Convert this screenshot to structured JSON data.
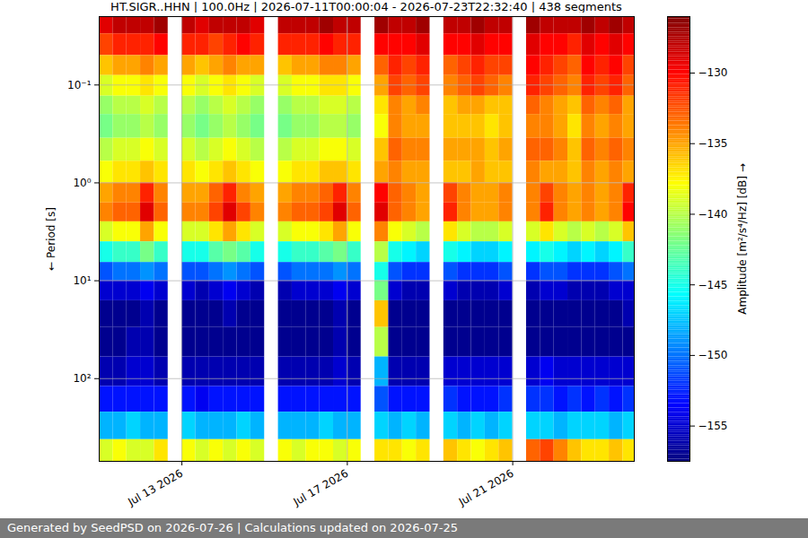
{
  "chart_data": {
    "type": "heatmap",
    "title": "HT.SIGR..HHN | 100.0Hz | 2026-07-11T00:00:04 - 2026-07-23T22:32:40 | 438 segments",
    "footer": "Generated by SeedPSD on 2026-07-26 | Calculations updated on 2026-07-25",
    "ylabel": "Period [s]",
    "log": "y",
    "grid": true,
    "color": "jet",
    "xlim": [
      "2026-07-11T00:00:04",
      "2026-07-23T22:32:40"
    ],
    "xticks": [
      {
        "value": "2026-07-13",
        "label": "Jul 13 2026"
      },
      {
        "value": "2026-07-17",
        "label": "Jul 17 2026"
      },
      {
        "value": "2026-07-21",
        "label": "Jul 21 2026"
      }
    ],
    "ylim": [
      0.02,
      700
    ],
    "yticks": [
      {
        "value": 0.1,
        "label": "10⁻¹"
      },
      {
        "value": 1,
        "label": "10⁰"
      },
      {
        "value": 10,
        "label": "10¹"
      },
      {
        "value": 100,
        "label": "10²"
      }
    ],
    "x_edges": [
      "2026-07-11T00:00:04",
      "2026-07-11T08:00:00",
      "2026-07-11T16:00:00",
      "2026-07-12T00:00:00",
      "2026-07-12T08:00:00",
      "2026-07-12T16:00:00",
      "2026-07-13T00:00:00",
      "2026-07-13T08:00:00",
      "2026-07-13T16:00:00",
      "2026-07-14T00:00:00",
      "2026-07-14T08:00:00",
      "2026-07-14T16:00:00",
      "2026-07-15T00:00:00",
      "2026-07-15T08:00:00",
      "2026-07-15T16:00:00",
      "2026-07-16T00:00:00",
      "2026-07-16T08:00:00",
      "2026-07-16T16:00:00",
      "2026-07-17T00:00:00",
      "2026-07-17T08:00:00",
      "2026-07-17T16:00:00",
      "2026-07-18T00:00:00",
      "2026-07-18T08:00:00",
      "2026-07-18T16:00:00",
      "2026-07-19T00:00:00",
      "2026-07-19T08:00:00",
      "2026-07-19T16:00:00",
      "2026-07-20T00:00:00",
      "2026-07-20T08:00:00",
      "2026-07-20T16:00:00",
      "2026-07-21T00:00:00",
      "2026-07-21T08:00:00",
      "2026-07-21T16:00:00",
      "2026-07-22T00:00:00",
      "2026-07-22T08:00:00",
      "2026-07-22T16:00:00",
      "2026-07-23T00:00:00",
      "2026-07-23T08:00:00",
      "2026-07-23T16:00:00",
      "2026-07-23T22:32:40"
    ],
    "y_edges": [
      0.02,
      0.03,
      0.05,
      0.08,
      0.13,
      0.2,
      0.35,
      0.6,
      1,
      1.6,
      2.5,
      4,
      6.5,
      10,
      16,
      30,
      60,
      120,
      220,
      420,
      700
    ],
    "cells": [
      [
        -129,
        -128,
        -128,
        -128,
        -127,
        null,
        -128,
        -129,
        -128,
        -128,
        -128,
        -129,
        null,
        -128,
        -128,
        -128,
        -127,
        -128,
        -128,
        null,
        -127,
        -128,
        -128,
        -127,
        null,
        -128,
        -128,
        -127,
        -128,
        -128,
        null,
        -127,
        -128,
        -128,
        -128,
        -127,
        -128,
        -127,
        -128
      ],
      [
        -132,
        -131,
        -131,
        -131,
        -130,
        null,
        -131,
        -131,
        -132,
        -131,
        -130,
        -131,
        null,
        -131,
        -131,
        -131,
        -130,
        -131,
        -131,
        null,
        -130,
        -130,
        -130,
        -129,
        null,
        -130,
        -130,
        -129,
        -130,
        -130,
        null,
        -129,
        -130,
        -130,
        -131,
        -129,
        -130,
        -129,
        -130
      ],
      [
        -136,
        -135,
        -135,
        -134,
        -135,
        null,
        -135,
        -136,
        -135,
        -134,
        -135,
        -135,
        null,
        -136,
        -135,
        -135,
        -134,
        -134,
        -135,
        null,
        -133,
        -131,
        -132,
        -131,
        null,
        -133,
        -132,
        -131,
        -132,
        -132,
        null,
        -130,
        -131,
        -132,
        -133,
        -130,
        -131,
        -130,
        -132
      ],
      [
        -139,
        -138,
        -138,
        -137,
        -138,
        null,
        -138,
        -139,
        -138,
        -137,
        -138,
        -139,
        null,
        -139,
        -138,
        -138,
        -137,
        -137,
        -138,
        null,
        -135,
        -132,
        -133,
        -132,
        null,
        -134,
        -133,
        -132,
        -133,
        -134,
        null,
        -131,
        -132,
        -133,
        -134,
        -131,
        -132,
        -131,
        -133
      ],
      [
        -141,
        -140,
        -140,
        -139,
        -140,
        null,
        -140,
        -141,
        -140,
        -139,
        -140,
        -141,
        null,
        -141,
        -140,
        -140,
        -139,
        -139,
        -140,
        null,
        -137,
        -134,
        -135,
        -134,
        null,
        -136,
        -135,
        -135,
        -136,
        -136,
        null,
        -133,
        -134,
        -135,
        -136,
        -133,
        -134,
        -133,
        -135
      ],
      [
        -142,
        -141,
        -141,
        -140,
        -141,
        null,
        -141,
        -142,
        -141,
        -140,
        -141,
        -142,
        null,
        -142,
        -141,
        -141,
        -140,
        -140,
        -141,
        null,
        -138,
        -134,
        -135,
        -135,
        null,
        -136,
        -136,
        -136,
        -137,
        -136,
        null,
        -134,
        -134,
        -135,
        -137,
        -134,
        -135,
        -134,
        -135
      ],
      [
        -140,
        -139,
        -139,
        -138,
        -139,
        null,
        -139,
        -140,
        -139,
        -138,
        -139,
        -140,
        null,
        -140,
        -139,
        -139,
        -138,
        -138,
        -139,
        null,
        -136,
        -133,
        -134,
        -134,
        null,
        -135,
        -135,
        -135,
        -136,
        -135,
        null,
        -133,
        -133,
        -134,
        -136,
        -133,
        -134,
        -133,
        -134
      ],
      [
        -138,
        -137,
        -137,
        -136,
        -137,
        null,
        -137,
        -138,
        -137,
        -136,
        -137,
        -138,
        null,
        -138,
        -137,
        -137,
        -136,
        -136,
        -137,
        null,
        -135,
        -134,
        -135,
        -135,
        null,
        -136,
        -136,
        -135,
        -136,
        -136,
        null,
        -134,
        -135,
        -135,
        -136,
        -134,
        -135,
        -134,
        -135
      ],
      [
        -135,
        -134,
        -134,
        -131,
        -134,
        null,
        -135,
        -135,
        -133,
        -131,
        -134,
        -135,
        null,
        -135,
        -134,
        -134,
        -133,
        -131,
        -134,
        null,
        -130,
        -133,
        -134,
        -135,
        null,
        -132,
        -134,
        -135,
        -135,
        -134,
        null,
        -134,
        -132,
        -134,
        -135,
        -134,
        -135,
        -134,
        -131
      ],
      [
        -134,
        -133,
        -133,
        -129,
        -133,
        null,
        -134,
        -134,
        -132,
        -129,
        -132,
        -134,
        null,
        -134,
        -133,
        -133,
        -132,
        -129,
        -133,
        null,
        -129,
        -133,
        -134,
        -135,
        null,
        -131,
        -134,
        -135,
        -135,
        -134,
        null,
        -134,
        -131,
        -134,
        -135,
        -134,
        -135,
        -134,
        -130
      ],
      [
        -139,
        -138,
        -138,
        -135,
        -138,
        null,
        -139,
        -139,
        -137,
        -135,
        -137,
        -139,
        null,
        -139,
        -138,
        -138,
        -137,
        -135,
        -138,
        null,
        -134,
        -138,
        -139,
        -140,
        null,
        -137,
        -139,
        -140,
        -140,
        -139,
        null,
        -139,
        -137,
        -139,
        -140,
        -139,
        -140,
        -139,
        -136
      ],
      [
        -145,
        -144,
        -144,
        -142,
        -144,
        null,
        -145,
        -145,
        -143,
        -142,
        -143,
        -145,
        null,
        -145,
        -144,
        -144,
        -143,
        -142,
        -144,
        null,
        -140,
        -145,
        -146,
        -147,
        null,
        -145,
        -146,
        -147,
        -147,
        -146,
        null,
        -146,
        -145,
        -146,
        -147,
        -146,
        -147,
        -146,
        -144
      ],
      [
        -151,
        -150,
        -150,
        -149,
        -150,
        null,
        -151,
        -151,
        -150,
        -149,
        -150,
        -151,
        null,
        -151,
        -150,
        -150,
        -150,
        -149,
        -150,
        null,
        -145,
        -151,
        -152,
        -152,
        null,
        -151,
        -152,
        -152,
        -152,
        -151,
        null,
        -152,
        -151,
        -151,
        -152,
        -152,
        -152,
        -151,
        -150
      ],
      [
        -155,
        -155,
        -155,
        -154,
        -155,
        null,
        -155,
        -156,
        -155,
        -154,
        -155,
        -156,
        null,
        -156,
        -155,
        -155,
        -155,
        -154,
        -155,
        null,
        -142,
        -155,
        -156,
        -156,
        null,
        -155,
        -156,
        -156,
        -156,
        -155,
        null,
        -156,
        -155,
        -155,
        -156,
        -156,
        -156,
        -155,
        -155
      ],
      [
        -157,
        -157,
        -157,
        -156,
        -157,
        null,
        -157,
        -157,
        -157,
        -156,
        -157,
        -157,
        null,
        -157,
        -157,
        -157,
        -157,
        -156,
        -157,
        null,
        -136,
        -157,
        -157,
        -157,
        null,
        -157,
        -157,
        -157,
        -157,
        -157,
        null,
        -157,
        -157,
        -157,
        -157,
        -157,
        -157,
        -157,
        -156
      ],
      [
        -157,
        -157,
        -156,
        -156,
        -157,
        null,
        -157,
        -157,
        -157,
        -157,
        -157,
        -157,
        null,
        -157,
        -157,
        -157,
        -157,
        -156,
        -157,
        null,
        -140,
        -157,
        -157,
        -157,
        null,
        -157,
        -157,
        -157,
        -157,
        -157,
        null,
        -157,
        -157,
        -157,
        -157,
        -157,
        -157,
        -157,
        -157
      ],
      [
        -156,
        -156,
        -155,
        -155,
        -156,
        null,
        -156,
        -156,
        -156,
        -156,
        -156,
        -156,
        null,
        -156,
        -156,
        -156,
        -156,
        -155,
        -156,
        null,
        -148,
        -156,
        -156,
        -156,
        null,
        -155,
        -155,
        -155,
        -155,
        -155,
        null,
        -155,
        -154,
        -155,
        -155,
        -155,
        -155,
        -155,
        -155
      ],
      [
        -153,
        -153,
        -153,
        -153,
        -153,
        null,
        -153,
        -154,
        -153,
        -153,
        -153,
        -153,
        null,
        -153,
        -153,
        -153,
        -153,
        -153,
        -153,
        null,
        -151,
        -153,
        -153,
        -153,
        null,
        -152,
        -153,
        -153,
        -153,
        -152,
        null,
        -152,
        -152,
        -153,
        -152,
        -153,
        -152,
        -153,
        -152
      ],
      [
        -148,
        -148,
        -147,
        -148,
        -148,
        null,
        -147,
        -148,
        -148,
        -148,
        -147,
        -148,
        null,
        -148,
        -148,
        -148,
        -147,
        -148,
        -148,
        null,
        -147,
        -148,
        -147,
        -148,
        null,
        -147,
        -148,
        -147,
        -148,
        -147,
        null,
        -147,
        -147,
        -148,
        -147,
        -147,
        -147,
        -148,
        -147
      ],
      [
        -139,
        -138,
        -139,
        -139,
        -137,
        null,
        -138,
        -139,
        -138,
        -139,
        -138,
        -139,
        null,
        -138,
        -139,
        -138,
        -138,
        -139,
        -138,
        null,
        -137,
        -137,
        -138,
        -137,
        null,
        -136,
        -137,
        -138,
        -137,
        -136,
        null,
        -133,
        -132,
        -134,
        -136,
        -137,
        -137,
        -136,
        -137
      ]
    ],
    "colorbar": {
      "label": "Amplitude [m²/s⁴/Hz] [dB]",
      "lim": [
        -157.5,
        -126
      ],
      "ticks": [
        -155,
        -150,
        -145,
        -140,
        -135,
        -130
      ]
    }
  }
}
